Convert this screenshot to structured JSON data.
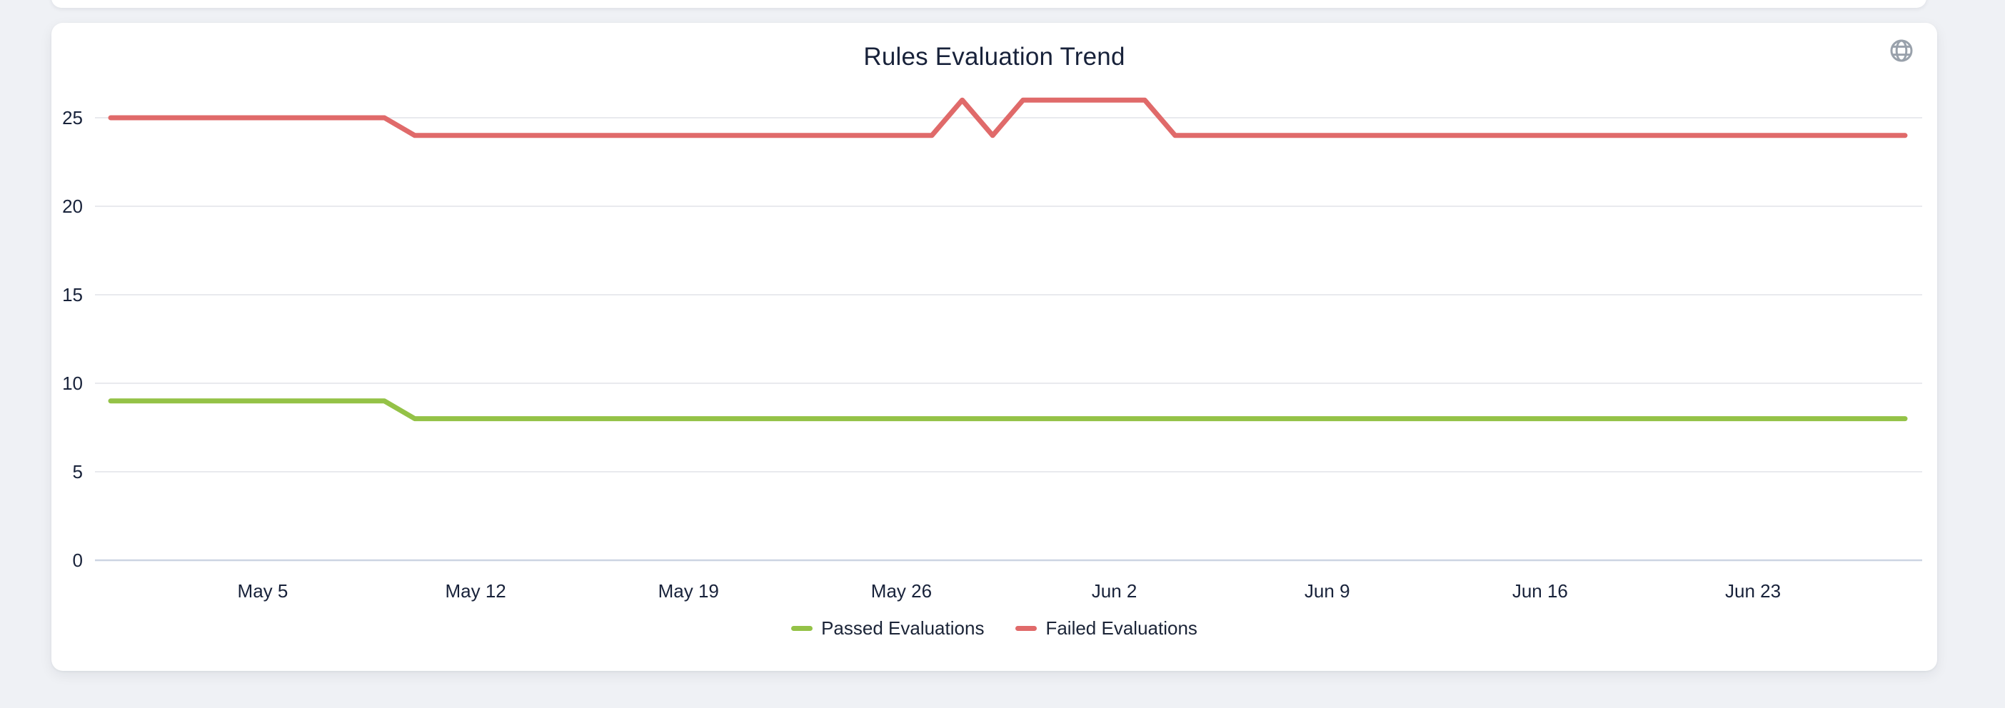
{
  "page": {
    "background_color": "#eff1f5"
  },
  "card": {
    "title": "Rules Evaluation Trend"
  },
  "header": {
    "globe_icon": "globe-icon",
    "globe_color": "#99a1ab"
  },
  "colors": {
    "text": "#18223a",
    "gridline": "#e9eaee",
    "zero_axis_line": "#ccd4e2",
    "passed": "#94c247",
    "failed": "#e06a6a"
  },
  "chart_data": {
    "type": "line",
    "title": "Rules Evaluation Trend",
    "xlabel": "",
    "ylabel": "",
    "ylim": [
      0,
      26.6
    ],
    "grid": true,
    "legend_position": "bottom",
    "y_ticks": [
      0,
      5,
      10,
      15,
      20,
      25
    ],
    "x_tick_labels": [
      "May 5",
      "May 12",
      "May 19",
      "May 26",
      "Jun 2",
      "Jun 9",
      "Jun 16",
      "Jun 23"
    ],
    "x": [
      "Apr 30",
      "May 1",
      "May 2",
      "May 3",
      "May 4",
      "May 5",
      "May 6",
      "May 7",
      "May 8",
      "May 9",
      "May 10",
      "May 11",
      "May 12",
      "May 13",
      "May 14",
      "May 15",
      "May 16",
      "May 17",
      "May 18",
      "May 19",
      "May 20",
      "May 21",
      "May 22",
      "May 23",
      "May 24",
      "May 25",
      "May 26",
      "May 27",
      "May 28",
      "May 29",
      "May 30",
      "May 31",
      "Jun 1",
      "Jun 2",
      "Jun 3",
      "Jun 4",
      "Jun 5",
      "Jun 6",
      "Jun 7",
      "Jun 8",
      "Jun 9",
      "Jun 10",
      "Jun 11",
      "Jun 12",
      "Jun 13",
      "Jun 14",
      "Jun 15",
      "Jun 16",
      "Jun 17",
      "Jun 18",
      "Jun 19",
      "Jun 20",
      "Jun 21",
      "Jun 22",
      "Jun 23",
      "Jun 24",
      "Jun 25",
      "Jun 26",
      "Jun 27",
      "Jun 28"
    ],
    "series": [
      {
        "name": "Passed Evaluations",
        "color": "#94c247",
        "values": [
          9,
          9,
          9,
          9,
          9,
          9,
          9,
          9,
          9,
          9,
          8,
          8,
          8,
          8,
          8,
          8,
          8,
          8,
          8,
          8,
          8,
          8,
          8,
          8,
          8,
          8,
          8,
          8,
          8,
          8,
          8,
          8,
          8,
          8,
          8,
          8,
          8,
          8,
          8,
          8,
          8,
          8,
          8,
          8,
          8,
          8,
          8,
          8,
          8,
          8,
          8,
          8,
          8,
          8,
          8,
          8,
          8,
          8,
          8,
          8
        ]
      },
      {
        "name": "Failed Evaluations",
        "color": "#e06a6a",
        "values": [
          25,
          25,
          25,
          25,
          25,
          25,
          25,
          25,
          25,
          25,
          24,
          24,
          24,
          24,
          24,
          24,
          24,
          24,
          24,
          24,
          24,
          24,
          24,
          24,
          24,
          24,
          24,
          24,
          26,
          24,
          26,
          26,
          26,
          26,
          26,
          24,
          24,
          24,
          24,
          24,
          24,
          24,
          24,
          24,
          24,
          24,
          24,
          24,
          24,
          24,
          24,
          24,
          24,
          24,
          24,
          24,
          24,
          24,
          24,
          24
        ]
      }
    ]
  }
}
